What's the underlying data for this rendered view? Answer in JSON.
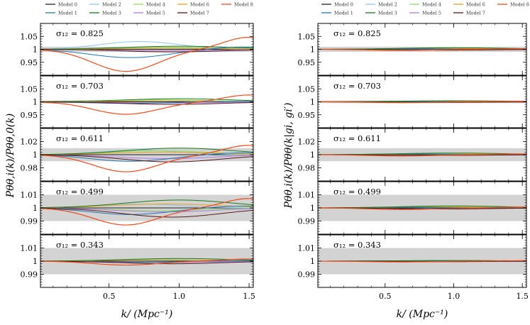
{
  "chart_data": {
    "type": "line",
    "figure": "Power spectrum ratios across cosmological models",
    "legend": [
      "Model 0",
      "Model 1",
      "Model 2",
      "Model 3",
      "Model 4",
      "Model 5",
      "Model 6",
      "Model 7",
      "Model 8"
    ],
    "colors": [
      "#222222",
      "#1f77b4",
      "#8fc8e8",
      "#1a7a1a",
      "#98e060",
      "#b07ce8",
      "#e8a020",
      "#5a1a1a",
      "#f04a1a"
    ],
    "band_color": "#d3d3d3",
    "xlabel": "k/ (Mpc⁻¹)",
    "xlim": [
      0.01,
      1.53
    ],
    "xticks": [
      0.5,
      1.0,
      1.5
    ],
    "xtick_labels": [
      "0.5",
      "1.0",
      "1.5"
    ],
    "columns": [
      {
        "ylabel": "Pθθ,i(k)/Pθθ,0(k)",
        "panels": [
          {
            "sigma_label": "σ₁₂ = 0.825",
            "ylim": [
              0.9,
              1.1
            ],
            "yticks": [
              1.05,
              1.0,
              0.95
            ],
            "ytick_labels": [
              "1.05",
              "1",
              "0.95"
            ],
            "band": 0.01,
            "amps": [
              0,
              -0.032,
              0.03,
              0.012,
              0.008,
              -0.006,
              0.004,
              -0.01,
              -0.085
            ]
          },
          {
            "sigma_label": "σ₁₂ = 0.703",
            "ylim": [
              0.9,
              1.1
            ],
            "yticks": [
              1.05,
              1.0,
              0.95
            ],
            "ytick_labels": [
              "1.05",
              "1",
              "0.95"
            ],
            "band": 0.005,
            "amps": [
              0,
              -0.006,
              0.005,
              0.012,
              0.008,
              -0.005,
              0.004,
              -0.01,
              -0.048
            ]
          },
          {
            "sigma_label": "σ₁₂ = 0.611",
            "ylim": [
              0.96,
              1.04
            ],
            "yticks": [
              1.02,
              1.0,
              0.98
            ],
            "ytick_labels": [
              "1.02",
              "1",
              "0.98"
            ],
            "band": 0.01,
            "amps": [
              0,
              -0.01,
              0.007,
              0.01,
              0.006,
              -0.006,
              0.004,
              -0.011,
              -0.026
            ]
          },
          {
            "sigma_label": "σ₁₂ = 0.499",
            "ylim": [
              0.98,
              1.02
            ],
            "yticks": [
              1.01,
              1.0,
              0.99
            ],
            "ytick_labels": [
              "1.01",
              "1",
              "0.99"
            ],
            "band": 0.01,
            "amps": [
              0,
              -0.005,
              0.003,
              0.006,
              -0.002,
              -0.003,
              0.003,
              -0.007,
              -0.013
            ]
          },
          {
            "sigma_label": "σ₁₂ = 0.343",
            "ylim": [
              0.98,
              1.02
            ],
            "yticks": [
              1.01,
              1.0,
              0.99
            ],
            "ytick_labels": [
              "1.01",
              "1",
              "0.99"
            ],
            "band": 0.01,
            "amps": [
              0,
              -0.001,
              0.001,
              0.002,
              0.001,
              -0.001,
              0.001,
              -0.002,
              -0.003
            ]
          }
        ]
      },
      {
        "ylabel": "Pθθ,i(k)/Pθθ(k|gi, gi′)",
        "panels": [
          {
            "sigma_label": "σ₁₂ = 0.825",
            "ylim": [
              0.9,
              1.1
            ],
            "yticks": [
              1.05,
              1.0,
              0.95
            ],
            "ytick_labels": [
              "1.05",
              "1",
              "0.95"
            ],
            "band": 0.01,
            "amps": [
              0,
              0.002,
              0.003,
              0.006,
              0.004,
              -0.002,
              0.003,
              -0.003,
              -0.004
            ]
          },
          {
            "sigma_label": "σ₁₂ = 0.703",
            "ylim": [
              0.9,
              1.1
            ],
            "yticks": [
              1.05,
              1.0,
              0.95
            ],
            "ytick_labels": [
              "1.05",
              "1",
              "0.95"
            ],
            "band": 0.005,
            "amps": [
              0,
              0.001,
              0.002,
              0.004,
              0.003,
              -0.002,
              0.002,
              -0.002,
              -0.003
            ]
          },
          {
            "sigma_label": "σ₁₂ = 0.611",
            "ylim": [
              0.96,
              1.04
            ],
            "yticks": [
              1.02,
              1.0,
              0.98
            ],
            "ytick_labels": [
              "1.02",
              "1",
              "0.98"
            ],
            "band": 0.01,
            "amps": [
              0,
              0.001,
              0.001,
              0.0025,
              0.0015,
              -0.001,
              0.001,
              -0.001,
              -0.002
            ]
          },
          {
            "sigma_label": "σ₁₂ = 0.499",
            "ylim": [
              0.98,
              1.02
            ],
            "yticks": [
              1.01,
              1.0,
              0.99
            ],
            "ytick_labels": [
              "1.01",
              "1",
              "0.99"
            ],
            "band": 0.01,
            "amps": [
              0,
              0.0005,
              0.0005,
              0.0015,
              0.001,
              -0.0008,
              0.0006,
              -0.0008,
              -0.0012
            ]
          },
          {
            "sigma_label": "σ₁₂ = 0.343",
            "ylim": [
              0.98,
              1.02
            ],
            "yticks": [
              1.01,
              1.0,
              0.99
            ],
            "ytick_labels": [
              "1.01",
              "1",
              "0.99"
            ],
            "band": 0.01,
            "amps": [
              0,
              0.0003,
              0.0003,
              0.0005,
              0.0004,
              -0.0004,
              0.0003,
              -0.0004,
              -0.0006
            ]
          }
        ]
      }
    ]
  }
}
